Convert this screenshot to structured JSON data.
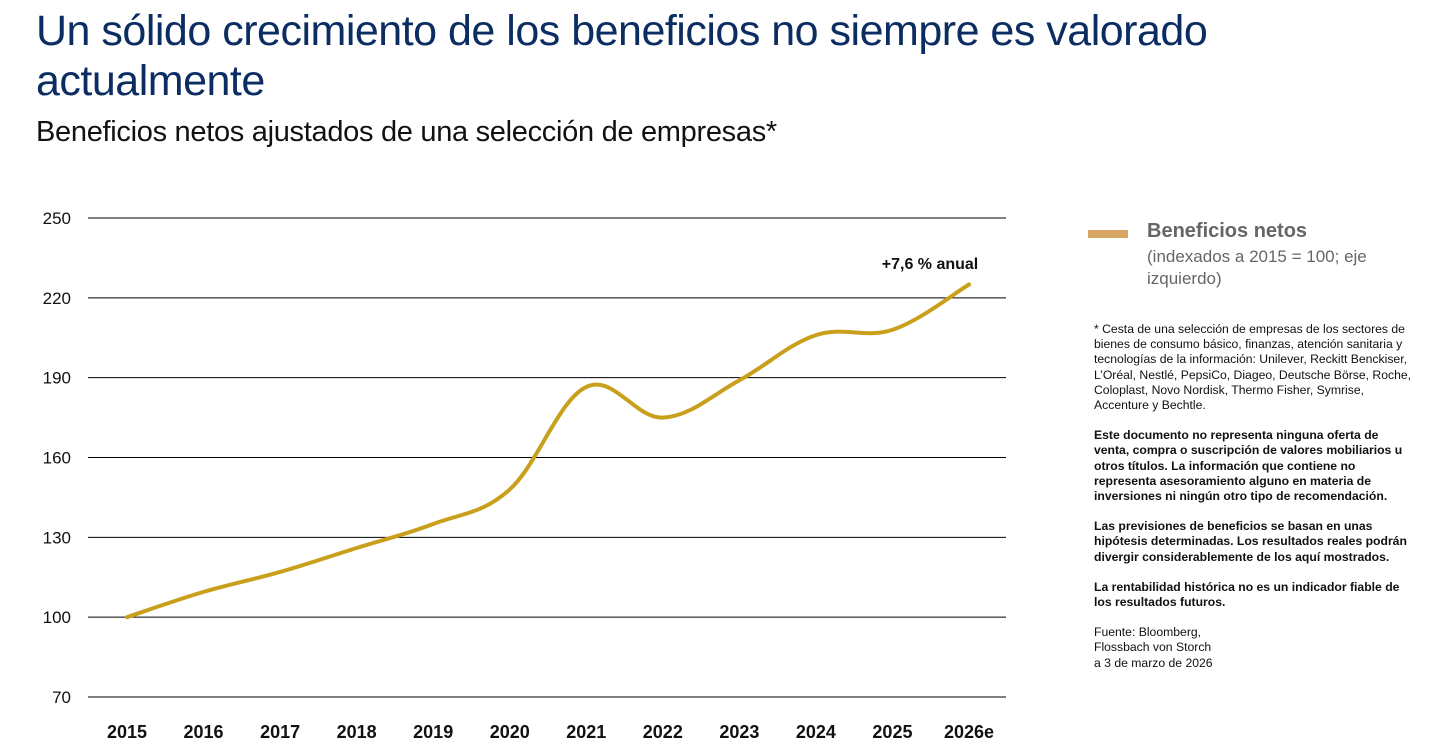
{
  "header": {
    "title": "Un sólido crecimiento de los beneficios no siempre es valorado actualmente",
    "subtitle": "Beneficios netos ajustados de una selección de empresas*"
  },
  "legend": {
    "title": "Beneficios netos",
    "subtitle": "(indexados a 2015 = 100; eje izquierdo)",
    "swatch_color": "#D6A661"
  },
  "notes": {
    "footnote": "* Cesta de una selección de empresas de los sectores de bienes de consumo básico, finanzas, atención sanitaria y tecnologías de la información: Unilever, Reckitt Benckiser, L’Oréal, Nestlé, PepsiCo, Diageo, Deutsche Börse, Roche, Coloplast, Novo Nordisk, Thermo Fisher, Symrise, Accenture y Bechtle.",
    "disclaimer1": "Este documento no representa ninguna oferta de venta, compra o suscripción de valores mobiliarios u otros títulos. La información que contiene no representa asesoramiento alguno en materia de inversiones ni ningún otro tipo de recomendación.",
    "disclaimer2": "Las previsiones de beneficios se basan en unas hipótesis determinadas. Los resultados reales podrán divergir considerablemente de los aquí mostrados.",
    "disclaimer3": "La rentabilidad histórica no es un indicador fiable de los resultados futuros.",
    "source_line1": "Fuente: Bloomberg,",
    "source_line2": "Flossbach von Storch",
    "source_line3": "a 3 de marzo de 2026"
  },
  "chart_data": {
    "type": "line",
    "title": "Beneficios netos ajustados de una selección de empresas*",
    "xlabel": "",
    "ylabel": "",
    "categories": [
      "2015",
      "2016",
      "2017",
      "2018",
      "2019",
      "2020",
      "2021",
      "2022",
      "2023",
      "2024",
      "2025",
      "2026e"
    ],
    "series": [
      {
        "name": "Beneficios netos",
        "color": "#C9A01C",
        "values": [
          100,
          109.5,
          117,
          126,
          135,
          148,
          186.5,
          175,
          189,
          206,
          208,
          225
        ]
      }
    ],
    "ylim": [
      70,
      250
    ],
    "yticks": [
      250,
      220,
      190,
      160,
      130,
      100,
      70
    ],
    "grid": true,
    "legend_position": "right",
    "annotation": "+7,6 % anual"
  }
}
